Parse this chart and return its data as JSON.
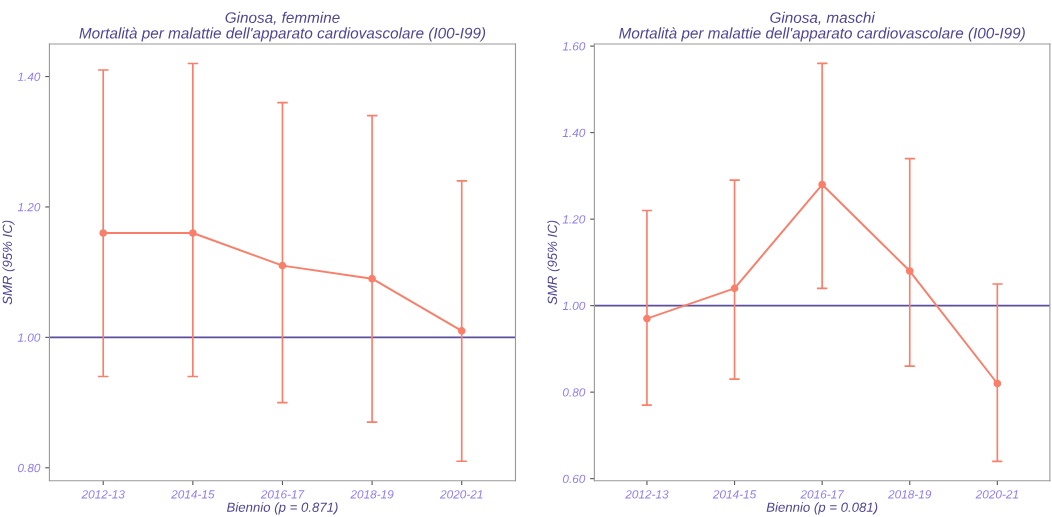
{
  "chart_data": [
    {
      "type": "line",
      "title": "Ginosa, femmine\nMortalità per malattie dell'apparato cardiovascolare (I00-I99)",
      "xlabel": "Biennio (p = 0.871)",
      "ylabel": "SMR (95% IC)",
      "categories": [
        "2012-13",
        "2014-15",
        "2016-17",
        "2018-19",
        "2020-21"
      ],
      "series": [
        {
          "color": "#fa7f6a",
          "values": [
            1.16,
            1.16,
            1.11,
            1.09,
            1.01
          ],
          "errors": [
            [
              0.94,
              1.41
            ],
            [
              0.94,
              1.42
            ],
            [
              0.9,
              1.36
            ],
            [
              0.87,
              1.34
            ],
            [
              0.81,
              1.24
            ]
          ]
        }
      ],
      "ylim": [
        0.78,
        1.45
      ],
      "yticks": [
        {
          "value": 0.8,
          "label": "0.80"
        },
        {
          "value": 1.0,
          "label": "1.00"
        },
        {
          "value": 1.2,
          "label": "1.20"
        },
        {
          "value": 1.4,
          "label": "1.40"
        }
      ],
      "ref_lines": [
        {
          "axis": "y",
          "value": 1.0,
          "label": null,
          "color": "#5b4fa0"
        }
      ],
      "marker": "circle",
      "grid": false,
      "legend": false
    },
    {
      "type": "line",
      "title": "Ginosa, maschi\nMortalità per malattie dell'apparato cardiovascolare (I00-I99)",
      "xlabel": "Biennio (p = 0.081)",
      "ylabel": "SMR (95% IC)",
      "categories": [
        "2012-13",
        "2014-15",
        "2016-17",
        "2018-19",
        "2020-21"
      ],
      "series": [
        {
          "color": "#fa7f6a",
          "values": [
            0.97,
            1.04,
            1.28,
            1.08,
            0.82
          ],
          "errors": [
            [
              0.77,
              1.22
            ],
            [
              0.83,
              1.29
            ],
            [
              1.04,
              1.56
            ],
            [
              0.86,
              1.34
            ],
            [
              0.64,
              1.05
            ]
          ]
        }
      ],
      "ylim": [
        0.595,
        1.605
      ],
      "yticks": [
        {
          "value": 0.6,
          "label": "0.60"
        },
        {
          "value": 0.8,
          "label": "0.80"
        },
        {
          "value": 1.0,
          "label": "1.00"
        },
        {
          "value": 1.2,
          "label": "1.20"
        },
        {
          "value": 1.4,
          "label": "1.40"
        },
        {
          "value": 1.6,
          "label": "1.60"
        }
      ],
      "ref_lines": [
        {
          "axis": "y",
          "value": 1.0,
          "label": null,
          "color": "#5b4fa0"
        }
      ],
      "marker": "circle",
      "grid": false,
      "legend": false
    }
  ]
}
